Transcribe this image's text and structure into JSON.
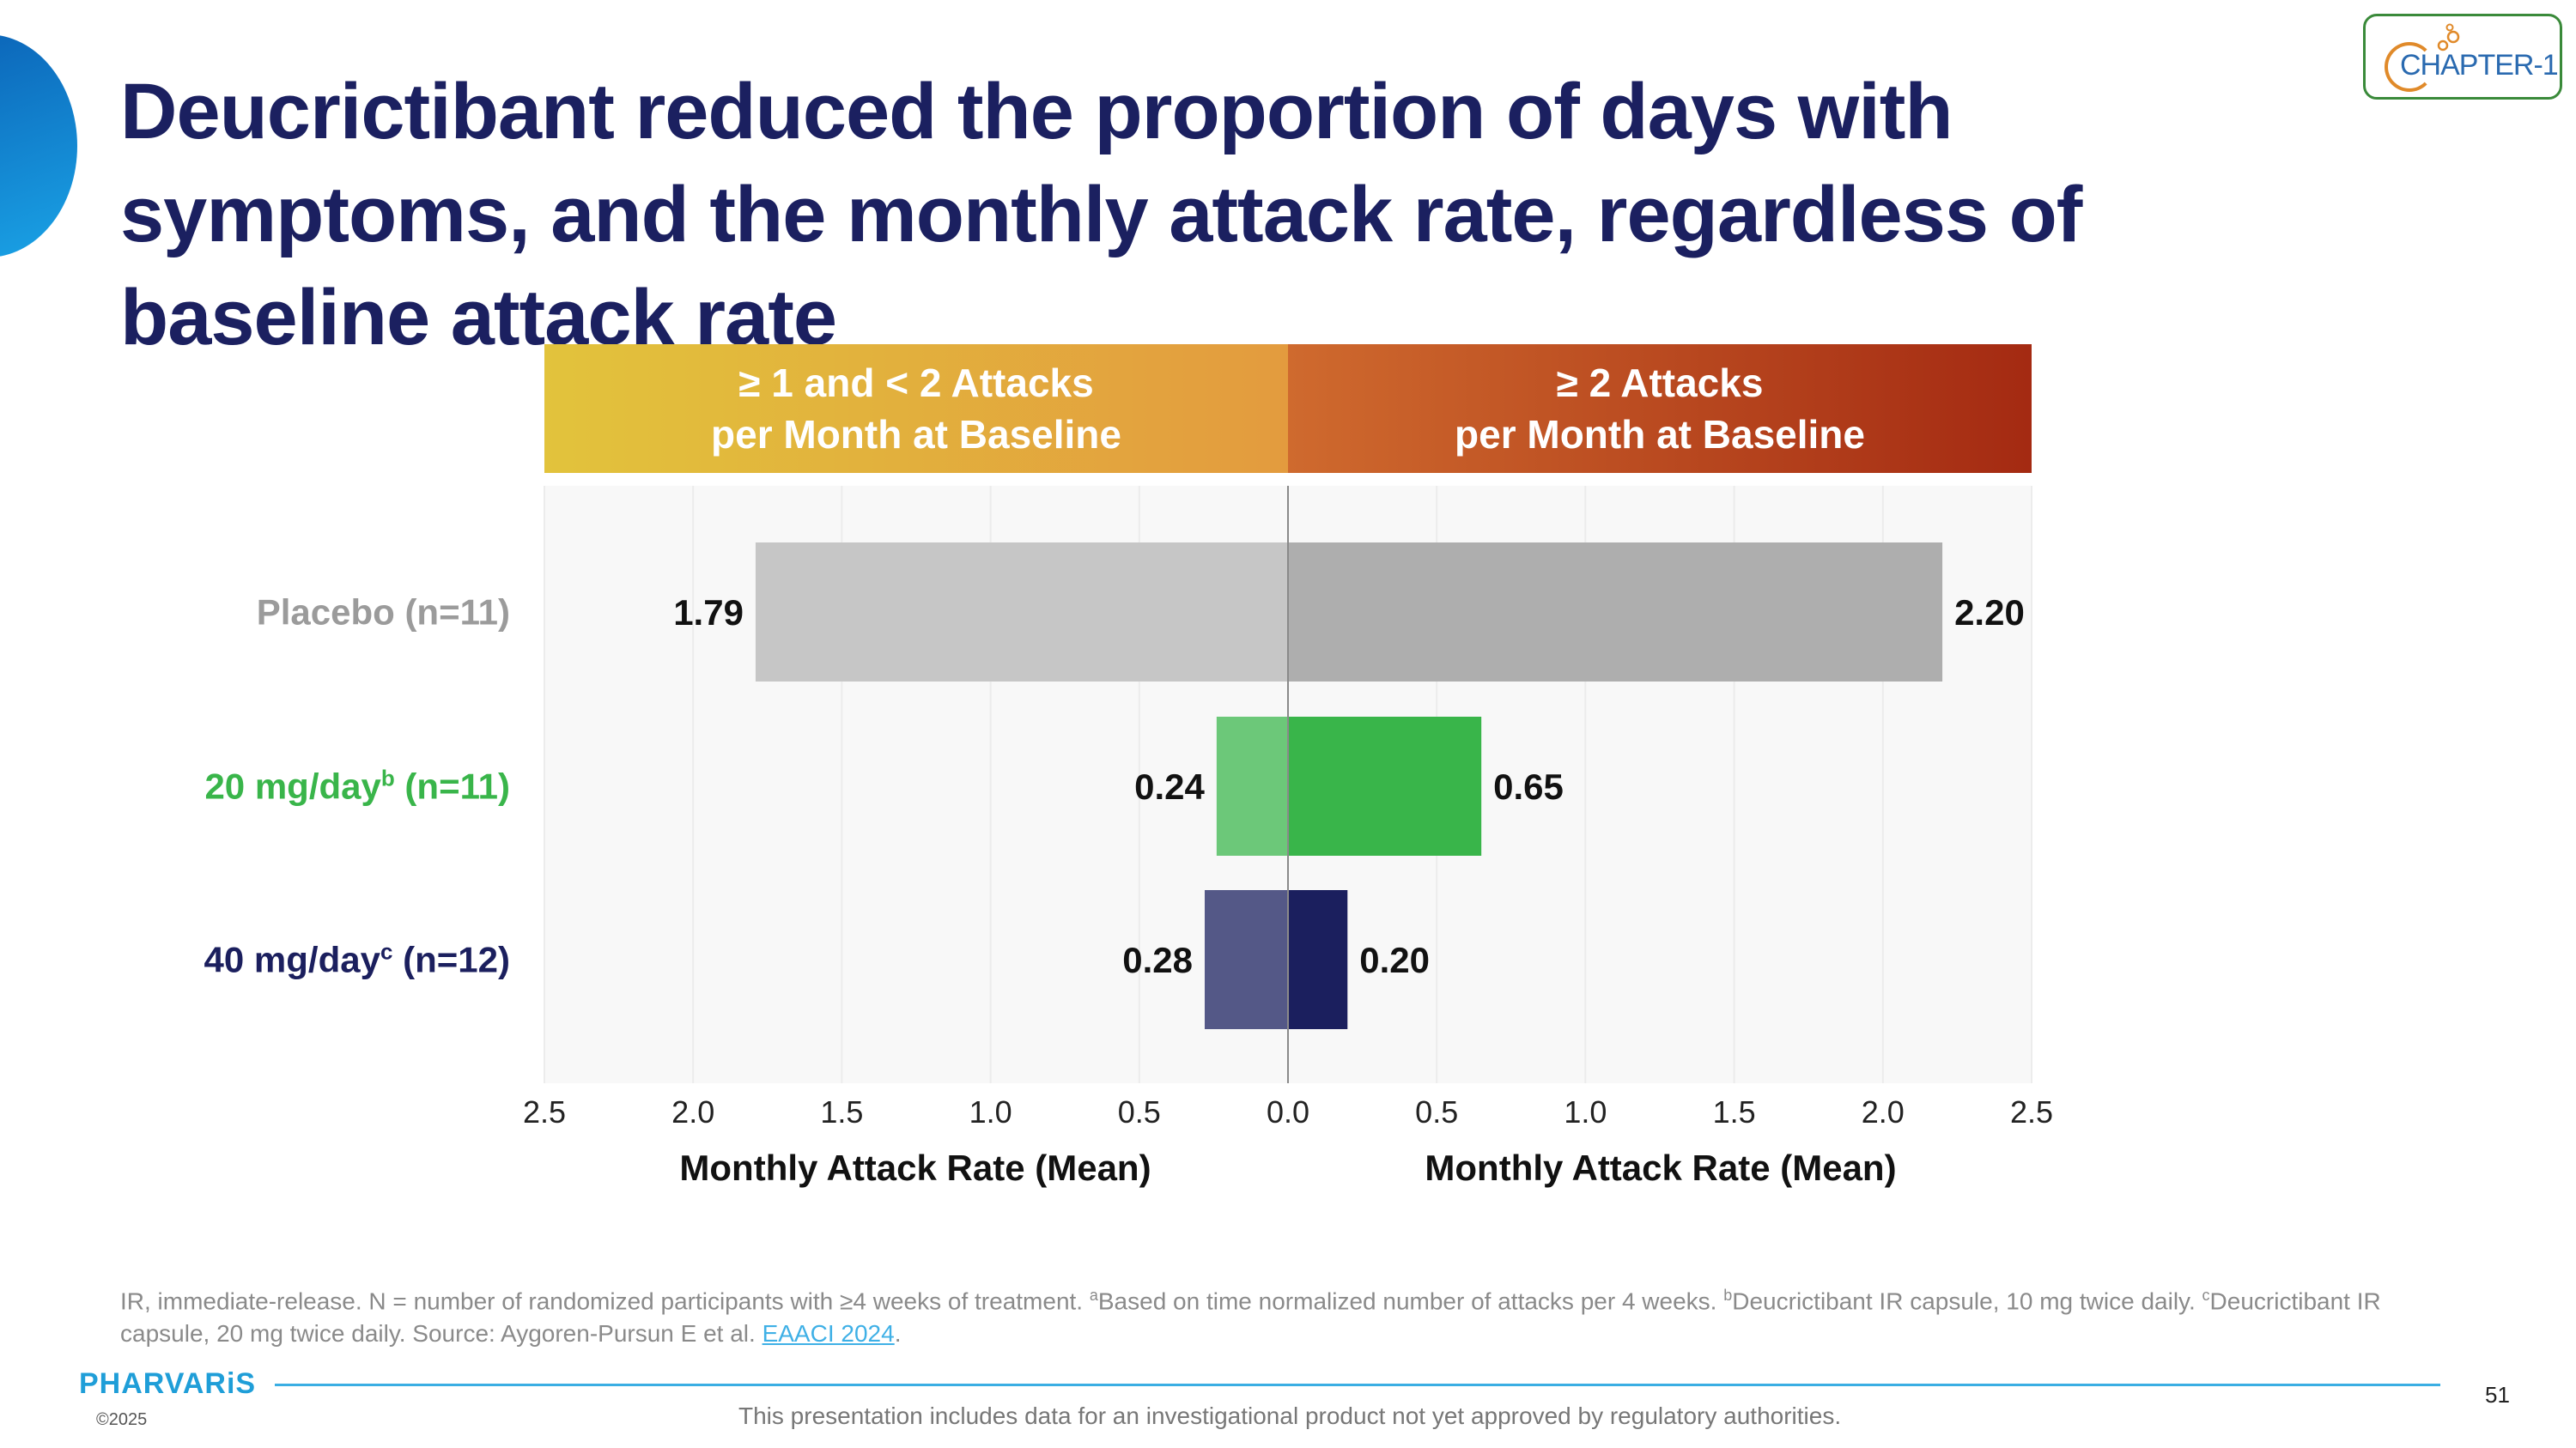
{
  "slide": {
    "title": "Deucrictibant reduced the proportion of days with symptoms, and the monthly attack rate, regardless of baseline attack rate",
    "logo_text": "CHAPTER-1",
    "panel_headers": {
      "left_line1": "≥ 1 and < 2 Attacks",
      "left_line2": "per Month at Baseline",
      "right_line1": "≥ 2 Attacks",
      "right_line2": "per Month at Baseline"
    },
    "row_labels": [
      {
        "main": "Placebo (n=11)",
        "sup": "",
        "tail": ""
      },
      {
        "main": "20 mg/day",
        "sup": "b",
        "tail": " (n=11)"
      },
      {
        "main": "40 mg/day",
        "sup": "c",
        "tail": " (n=12)"
      }
    ],
    "footnote": {
      "part1": "IR, immediate-release. N = number of randomized participants with ≥4 weeks of treatment. ",
      "sup_a": "a",
      "part2": "Based on time normalized number of attacks per 4 weeks. ",
      "sup_b": "b",
      "part3": "Deucrictibant IR capsule, 10 mg twice daily. ",
      "sup_c": "c",
      "part4": "Deucrictibant IR capsule, 20 mg twice daily. Source: Aygoren-Pursun E et al. ",
      "link": "EAACI 2024",
      "part5": "."
    },
    "company": "PHARVARiS",
    "copyright": "©2025",
    "disclaimer": "This presentation includes data for an investigational product not yet approved by regulatory authorities.",
    "page_number": "51"
  },
  "colors": {
    "placebo_left": "#c6c6c6",
    "placebo_right": "#aeaeae",
    "dose20_left": "#6cc879",
    "dose20_right": "#39b54a",
    "dose40_left": "#545887",
    "dose40_right": "#1b1f5e",
    "label_placebo": "#9b9b9b",
    "label_dose20": "#39b54a",
    "label_dose40": "#1b1f5e",
    "title": "#1b2060"
  },
  "chart_data": {
    "type": "bar",
    "orientation": "horizontal-butterfly",
    "categories": [
      "Placebo (n=11)",
      "20 mg/dayb (n=11)",
      "40 mg/dayc (n=12)"
    ],
    "series": [
      {
        "name": "≥ 1 and < 2 Attacks per Month at Baseline",
        "values": [
          1.79,
          0.24,
          0.28
        ],
        "labels": [
          "1.79",
          "0.24",
          "0.28"
        ]
      },
      {
        "name": "≥ 2 Attacks per Month at Baseline",
        "values": [
          2.2,
          0.65,
          0.2
        ],
        "labels": [
          "2.20",
          "0.65",
          "0.20"
        ]
      }
    ],
    "left_ticks": [
      "2.5",
      "2.0",
      "1.5",
      "1.0",
      "0.5",
      "0.0"
    ],
    "right_ticks": [
      "0.5",
      "1.0",
      "1.5",
      "2.0",
      "2.5"
    ],
    "xlabel_left": "Monthly Attack Rate (Mean)",
    "xlabel_right": "Monthly Attack Rate (Mean)",
    "xlim": [
      0,
      2.5
    ],
    "grid": true
  }
}
